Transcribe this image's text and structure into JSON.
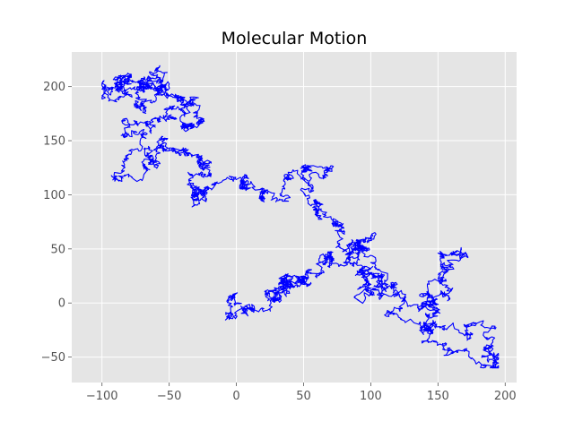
{
  "chart_data": {
    "type": "line",
    "title": "Molecular Motion",
    "xlabel": "",
    "ylabel": "",
    "xlim": [
      -122.5,
      208.5
    ],
    "ylim": [
      -73.5,
      232
    ],
    "x_ticks": [
      -100,
      -50,
      0,
      50,
      100,
      150,
      200
    ],
    "y_ticks": [
      -50,
      0,
      50,
      100,
      150,
      200
    ],
    "x_tick_labels": [
      "−100",
      "−50",
      "0",
      "50",
      "100",
      "150",
      "200"
    ],
    "y_tick_labels": [
      "−50",
      "0",
      "50",
      "100",
      "150",
      "200"
    ],
    "grid": true,
    "legend": "none",
    "series": [
      {
        "color": "#0000ff",
        "seed": 7,
        "steps": 4200,
        "step_size": 2.4,
        "anchors": [
          {
            "x": 0,
            "y": 0
          },
          {
            "x": 12,
            "y": -6
          },
          {
            "x": 25,
            "y": 10
          },
          {
            "x": 38,
            "y": 22
          },
          {
            "x": 48,
            "y": 24
          },
          {
            "x": 40,
            "y": 10
          },
          {
            "x": 70,
            "y": 45
          },
          {
            "x": 85,
            "y": 40
          },
          {
            "x": 100,
            "y": 60
          },
          {
            "x": 95,
            "y": 30
          },
          {
            "x": 110,
            "y": 15
          },
          {
            "x": 95,
            "y": 0
          },
          {
            "x": 120,
            "y": 10
          },
          {
            "x": 140,
            "y": 0
          },
          {
            "x": 160,
            "y": 30
          },
          {
            "x": 170,
            "y": 45
          },
          {
            "x": 150,
            "y": -10
          },
          {
            "x": 170,
            "y": -30
          },
          {
            "x": 185,
            "y": -45
          },
          {
            "x": 195,
            "y": -60
          },
          {
            "x": 140,
            "y": -35
          },
          {
            "x": 120,
            "y": -15
          },
          {
            "x": 110,
            "y": 30
          },
          {
            "x": 75,
            "y": 55
          },
          {
            "x": 60,
            "y": 80
          },
          {
            "x": 55,
            "y": 110
          },
          {
            "x": 70,
            "y": 120
          },
          {
            "x": 35,
            "y": 95
          },
          {
            "x": 10,
            "y": 110
          },
          {
            "x": -5,
            "y": 115
          },
          {
            "x": -20,
            "y": 95
          },
          {
            "x": -35,
            "y": 110
          },
          {
            "x": -25,
            "y": 130
          },
          {
            "x": -45,
            "y": 140
          },
          {
            "x": -70,
            "y": 140
          },
          {
            "x": -85,
            "y": 115
          },
          {
            "x": -75,
            "y": 160
          },
          {
            "x": -60,
            "y": 170
          },
          {
            "x": -40,
            "y": 160
          },
          {
            "x": -30,
            "y": 180
          },
          {
            "x": -50,
            "y": 195
          },
          {
            "x": -70,
            "y": 180
          },
          {
            "x": -85,
            "y": 195
          },
          {
            "x": -100,
            "y": 190
          },
          {
            "x": -80,
            "y": 210
          },
          {
            "x": -60,
            "y": 215
          },
          {
            "x": -55,
            "y": 200
          },
          {
            "x": -30,
            "y": 190
          }
        ]
      }
    ]
  }
}
